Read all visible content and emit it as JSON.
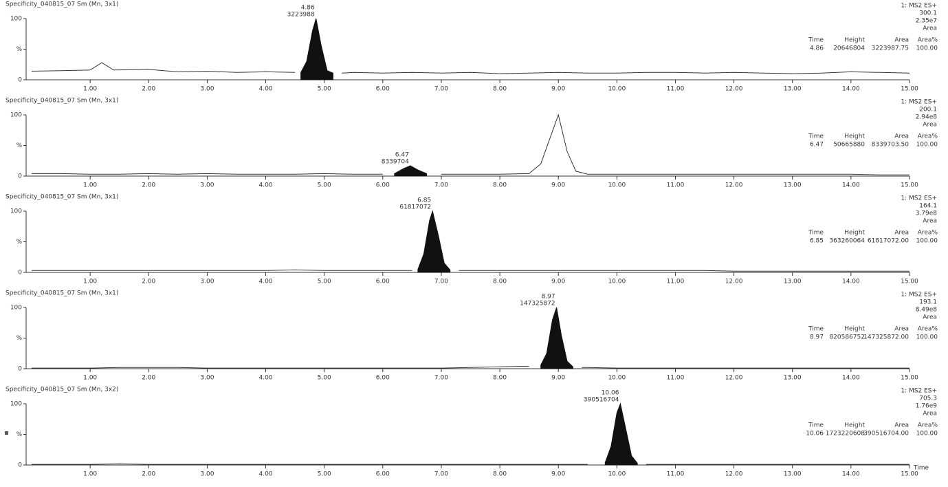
{
  "chart_data": [
    {
      "type": "line",
      "title": "Specificity_040815_07 Sm (Mn, 3x1)",
      "x": [
        0,
        0.5,
        1,
        1.2,
        1.4,
        2,
        2.5,
        3,
        3.5,
        4,
        4.5,
        4.6,
        4.7,
        4.8,
        4.86,
        4.95,
        5.05,
        5.15,
        5.3,
        5.5,
        6,
        6.5,
        7,
        7.5,
        8,
        8.5,
        9,
        9.5,
        10,
        10.5,
        11,
        11.5,
        12,
        12.5,
        13,
        13.5,
        14,
        14.5,
        15
      ],
      "series": [
        {
          "color": "#333333",
          "values": [
            14,
            15,
            16,
            28,
            16,
            17,
            13,
            14,
            12,
            13,
            12,
            null,
            null,
            null,
            null,
            null,
            null,
            null,
            11,
            12,
            11,
            12,
            11,
            12,
            10,
            11,
            12,
            11,
            11,
            12,
            12,
            11,
            12,
            11,
            10,
            11,
            13,
            12,
            11
          ]
        },
        {
          "color": "#111111",
          "fill": true,
          "values": [
            null,
            null,
            null,
            null,
            null,
            null,
            null,
            null,
            null,
            null,
            null,
            12,
            30,
            80,
            100,
            55,
            15,
            11,
            null,
            null,
            null,
            null,
            null,
            null,
            null,
            null,
            null,
            null,
            null,
            null,
            null,
            null,
            null,
            null,
            null,
            null,
            null,
            null,
            null
          ]
        }
      ],
      "xlim": [
        0,
        15
      ],
      "xticks": [
        {
          "value": 1,
          "label": "1.00"
        },
        {
          "value": 2,
          "label": "2.00"
        },
        {
          "value": 3,
          "label": "3.00"
        },
        {
          "value": 4,
          "label": "4.00"
        },
        {
          "value": 5,
          "label": "5.00"
        },
        {
          "value": 6,
          "label": "6.00"
        },
        {
          "value": 7,
          "label": "7.00"
        },
        {
          "value": 8,
          "label": "8.00"
        },
        {
          "value": 9,
          "label": "9.00"
        },
        {
          "value": 10,
          "label": "10.00"
        },
        {
          "value": 11,
          "label": "11.00"
        },
        {
          "value": 12,
          "label": "12.00"
        },
        {
          "value": 13,
          "label": "13.00"
        },
        {
          "value": 14,
          "label": "14.00"
        },
        {
          "value": 15,
          "label": "15.00"
        }
      ],
      "ylim": [
        0,
        100
      ],
      "yticks": [
        0,
        {
          "value": 50,
          "label": "%"
        },
        100
      ],
      "header": [
        "1: MS2 ES+",
        "300.1",
        "2.35e7",
        "Area"
      ],
      "table": {
        "columns": [
          "Time",
          "Height",
          "Area",
          "Area%"
        ],
        "row": [
          "4.86",
          "20646804",
          "3223987.75",
          "100.00"
        ]
      },
      "peak_label": {
        "time": "4.86",
        "area": "3223988"
      }
    },
    {
      "type": "line",
      "title": "Specificity_040815_07 Sm (Mn, 3x1)",
      "x": [
        0,
        0.5,
        1,
        1.5,
        2,
        2.5,
        3,
        3.5,
        4,
        4.5,
        5,
        5.5,
        6,
        6.2,
        6.35,
        6.47,
        6.6,
        6.75,
        7,
        7.5,
        8,
        8.5,
        8.7,
        8.85,
        9,
        9.15,
        9.3,
        9.5,
        10,
        10.5,
        11,
        11.5,
        12,
        12.5,
        13,
        13.5,
        14,
        14.5,
        15
      ],
      "series": [
        {
          "color": "#333333",
          "values": [
            4,
            4,
            3,
            3,
            4,
            3,
            4,
            3,
            3,
            3,
            4,
            3,
            3,
            null,
            null,
            null,
            null,
            null,
            3,
            3,
            3,
            4,
            20,
            60,
            100,
            40,
            8,
            3,
            3,
            3,
            3,
            3,
            3,
            3,
            3,
            3,
            3,
            2,
            2
          ]
        },
        {
          "color": "#111111",
          "fill": true,
          "values": [
            null,
            null,
            null,
            null,
            null,
            null,
            null,
            null,
            null,
            null,
            null,
            null,
            null,
            4,
            12,
            17,
            10,
            4,
            null,
            null,
            null,
            null,
            null,
            null,
            null,
            null,
            null,
            null,
            null,
            null,
            null,
            null,
            null,
            null,
            null,
            null,
            null,
            null,
            null
          ]
        }
      ],
      "xlim": [
        0,
        15
      ],
      "xticks": [
        {
          "value": 1,
          "label": "1.00"
        },
        {
          "value": 2,
          "label": "2.00"
        },
        {
          "value": 3,
          "label": "3.00"
        },
        {
          "value": 4,
          "label": "4.00"
        },
        {
          "value": 5,
          "label": "5.00"
        },
        {
          "value": 6,
          "label": "6.00"
        },
        {
          "value": 7,
          "label": "7.00"
        },
        {
          "value": 8,
          "label": "8.00"
        },
        {
          "value": 9,
          "label": "9.00"
        },
        {
          "value": 10,
          "label": "10.00"
        },
        {
          "value": 11,
          "label": "11.00"
        },
        {
          "value": 12,
          "label": "12.00"
        },
        {
          "value": 13,
          "label": "13.00"
        },
        {
          "value": 14,
          "label": "14.00"
        },
        {
          "value": 15,
          "label": "15.00"
        }
      ],
      "ylim": [
        0,
        100
      ],
      "yticks": [
        0,
        {
          "value": 50,
          "label": "%"
        },
        100
      ],
      "header": [
        "1: MS2 ES+",
        "200.1",
        "2.94e8",
        "Area"
      ],
      "table": {
        "columns": [
          "Time",
          "Height",
          "Area",
          "Area%"
        ],
        "row": [
          "6.47",
          "50665880",
          "8339703.50",
          "100.00"
        ]
      },
      "peak_label": {
        "time": "6.47",
        "area": "8339704"
      }
    },
    {
      "type": "line",
      "title": "Specificity_040815_07 Sm (Mn, 3x1)",
      "x": [
        0,
        0.5,
        1,
        1.5,
        2,
        2.5,
        3,
        3.5,
        4,
        4.5,
        5,
        5.5,
        6,
        6.5,
        6.6,
        6.7,
        6.8,
        6.85,
        6.95,
        7.05,
        7.15,
        7.3,
        7.5,
        8,
        8.5,
        9,
        9.5,
        10,
        10.5,
        11,
        11.5,
        12,
        12.5,
        13,
        13.5,
        14,
        14.5,
        15
      ],
      "series": [
        {
          "color": "#333333",
          "values": [
            3,
            3,
            3,
            3,
            3,
            3,
            3,
            3,
            3,
            4,
            3,
            3,
            3,
            3,
            null,
            null,
            null,
            null,
            null,
            null,
            null,
            3,
            3,
            3,
            3,
            3,
            3,
            3,
            3,
            3,
            3,
            2,
            2,
            2,
            2,
            2,
            2,
            2
          ]
        },
        {
          "color": "#111111",
          "fill": true,
          "values": [
            null,
            null,
            null,
            null,
            null,
            null,
            null,
            null,
            null,
            null,
            null,
            null,
            null,
            null,
            5,
            30,
            85,
            100,
            60,
            15,
            4,
            null,
            null,
            null,
            null,
            null,
            null,
            null,
            null,
            null,
            null,
            null,
            null,
            null,
            null,
            null,
            null,
            null
          ]
        }
      ],
      "xlim": [
        0,
        15
      ],
      "xticks": [
        {
          "value": 1,
          "label": "1.00"
        },
        {
          "value": 2,
          "label": "2.00"
        },
        {
          "value": 3,
          "label": "3.00"
        },
        {
          "value": 4,
          "label": "4.00"
        },
        {
          "value": 5,
          "label": "5.00"
        },
        {
          "value": 6,
          "label": "6.00"
        },
        {
          "value": 7,
          "label": "7.00"
        },
        {
          "value": 8,
          "label": "8.00"
        },
        {
          "value": 9,
          "label": "9.00"
        },
        {
          "value": 10,
          "label": "10.00"
        },
        {
          "value": 11,
          "label": "11.00"
        },
        {
          "value": 12,
          "label": "12.00"
        },
        {
          "value": 13,
          "label": "13.00"
        },
        {
          "value": 14,
          "label": "14.00"
        },
        {
          "value": 15,
          "label": "15.00"
        }
      ],
      "ylim": [
        0,
        100
      ],
      "yticks": [
        0,
        {
          "value": 50,
          "label": "%"
        },
        100
      ],
      "header": [
        "1: MS2 ES+",
        "164.1",
        "3.79e8",
        "Area"
      ],
      "table": {
        "columns": [
          "Time",
          "Height",
          "Area",
          "Area%"
        ],
        "row": [
          "6.85",
          "363260064",
          "61817072.00",
          "100.00"
        ]
      },
      "peak_label": {
        "time": "6.85",
        "area": "61817072"
      }
    },
    {
      "type": "line",
      "title": "Specificity_040815_07 Sm (Mn, 3x1)",
      "x": [
        0,
        0.5,
        1,
        1.5,
        2,
        2.5,
        3,
        3.5,
        4,
        4.5,
        5,
        5.5,
        6,
        6.5,
        7,
        7.5,
        8,
        8.5,
        8.7,
        8.8,
        8.9,
        8.97,
        9.05,
        9.15,
        9.25,
        9.4,
        9.5,
        10,
        10.5,
        11,
        11.5,
        12,
        12.5,
        13,
        13.5,
        14,
        14.5,
        15
      ],
      "series": [
        {
          "color": "#333333",
          "values": [
            1,
            1,
            1,
            2,
            2,
            2,
            1,
            1,
            1,
            1,
            1,
            1,
            1,
            1,
            1,
            2,
            3,
            4,
            null,
            null,
            null,
            null,
            null,
            null,
            null,
            2,
            2,
            1,
            1,
            1,
            1,
            1,
            1,
            1,
            1,
            1,
            1,
            1
          ]
        },
        {
          "color": "#111111",
          "fill": true,
          "values": [
            null,
            null,
            null,
            null,
            null,
            null,
            null,
            null,
            null,
            null,
            null,
            null,
            null,
            null,
            null,
            null,
            null,
            null,
            6,
            25,
            80,
            100,
            55,
            12,
            3,
            null,
            null,
            null,
            null,
            null,
            null,
            null,
            null,
            null,
            null,
            null,
            null,
            null
          ]
        }
      ],
      "xlim": [
        0,
        15
      ],
      "xticks": [
        {
          "value": 1,
          "label": "1.00"
        },
        {
          "value": 2,
          "label": "2.00"
        },
        {
          "value": 3,
          "label": "3.00"
        },
        {
          "value": 4,
          "label": "4.00"
        },
        {
          "value": 5,
          "label": "5.00"
        },
        {
          "value": 6,
          "label": "6.00"
        },
        {
          "value": 7,
          "label": "7.00"
        },
        {
          "value": 8,
          "label": "8.00"
        },
        {
          "value": 9,
          "label": "9.00"
        },
        {
          "value": 10,
          "label": "10.00"
        },
        {
          "value": 11,
          "label": "11.00"
        },
        {
          "value": 12,
          "label": "12.00"
        },
        {
          "value": 13,
          "label": "13.00"
        },
        {
          "value": 14,
          "label": "14.00"
        },
        {
          "value": 15,
          "label": "15.00"
        }
      ],
      "ylim": [
        0,
        100
      ],
      "yticks": [
        0,
        {
          "value": 50,
          "label": "%"
        },
        100
      ],
      "header": [
        "1: MS2 ES+",
        "193.1",
        "8.49e8",
        "Area"
      ],
      "table": {
        "columns": [
          "Time",
          "Height",
          "Area",
          "Area%"
        ],
        "row": [
          "8.97",
          "820586752",
          "147325872.00",
          "100.00"
        ]
      },
      "peak_label": {
        "time": "8.97",
        "area": "147325872"
      }
    },
    {
      "type": "line",
      "title": "Specificity_040815_07 Sm (Mn, 3x2)",
      "x": [
        0,
        0.5,
        1,
        1.5,
        2,
        2.5,
        3,
        3.5,
        4,
        4.5,
        5,
        5.5,
        6,
        6.5,
        7,
        7.5,
        8,
        8.5,
        9,
        9.5,
        9.8,
        9.9,
        10,
        10.06,
        10.15,
        10.25,
        10.35,
        10.5,
        11,
        11.5,
        12,
        12.5,
        13,
        13.5,
        14,
        14.5,
        15
      ],
      "series": [
        {
          "color": "#333333",
          "values": [
            1,
            1,
            1,
            2,
            1,
            1,
            1,
            1,
            1,
            1,
            1,
            1,
            1,
            1,
            1,
            1,
            1,
            1,
            1,
            1,
            null,
            null,
            null,
            null,
            null,
            null,
            null,
            1,
            1,
            1,
            1,
            1,
            1,
            1,
            1,
            1,
            1
          ]
        },
        {
          "color": "#111111",
          "fill": true,
          "values": [
            null,
            null,
            null,
            null,
            null,
            null,
            null,
            null,
            null,
            null,
            null,
            null,
            null,
            null,
            null,
            null,
            null,
            null,
            null,
            null,
            4,
            30,
            85,
            100,
            60,
            15,
            3,
            null,
            null,
            null,
            null,
            null,
            null,
            null,
            null,
            null,
            null
          ]
        }
      ],
      "xlim": [
        0,
        15
      ],
      "xticks": [
        {
          "value": 1,
          "label": "1.00"
        },
        {
          "value": 2,
          "label": "2.00"
        },
        {
          "value": 3,
          "label": "3.00"
        },
        {
          "value": 4,
          "label": "4.00"
        },
        {
          "value": 5,
          "label": "5.00"
        },
        {
          "value": 6,
          "label": "6.00"
        },
        {
          "value": 7,
          "label": "7.00"
        },
        {
          "value": 8,
          "label": "8.00"
        },
        {
          "value": 9,
          "label": "9.00"
        },
        {
          "value": 10,
          "label": "10.00"
        },
        {
          "value": 11,
          "label": "11.00"
        },
        {
          "value": 12,
          "label": "12.00"
        },
        {
          "value": 13,
          "label": "13.00"
        },
        {
          "value": 14,
          "label": "14.00"
        },
        {
          "value": 15,
          "label": "15.00"
        }
      ],
      "ylim": [
        0,
        100
      ],
      "yticks": [
        0,
        {
          "value": 50,
          "label": "%"
        },
        100
      ],
      "xlabel": "Time",
      "header": [
        "1: MS2 ES+",
        "705.3",
        "1.76e9",
        "Area"
      ],
      "table": {
        "columns": [
          "Time",
          "Height",
          "Area",
          "Area%"
        ],
        "row": [
          "10.06",
          "1723220608",
          "390516704.00",
          "100.00"
        ]
      },
      "peak_label": {
        "time": "10.06",
        "area": "390516704"
      }
    }
  ]
}
